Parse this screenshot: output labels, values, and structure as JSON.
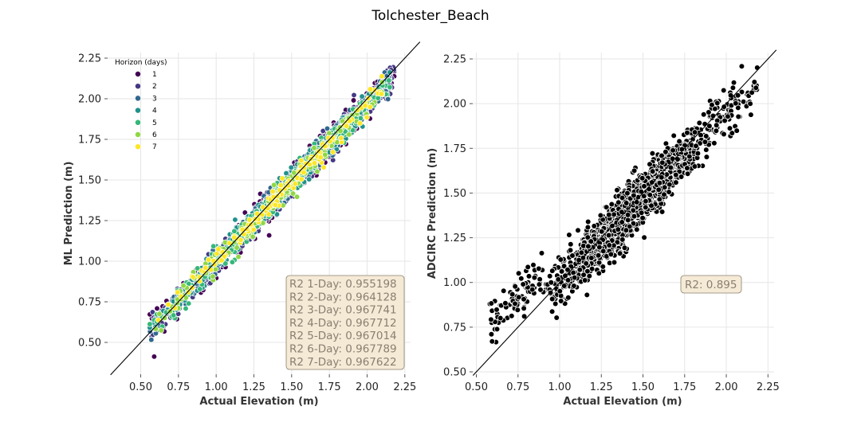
{
  "title": "Tolchester_Beach",
  "colors": {
    "grid": "#e6e6e6",
    "box_fill": "#f5ead6",
    "box_edge": "#8a8070",
    "box_text": "#8a7f70",
    "viridis": [
      "#440154",
      "#443983",
      "#31688e",
      "#21918c",
      "#35b779",
      "#8fd744",
      "#fde725"
    ]
  },
  "left_panel": {
    "xlabel": "Actual Elevation (m)",
    "ylabel": "ML Prediction (m)",
    "legend_title": "Horizon (days)",
    "legend_items": [
      "1",
      "2",
      "3",
      "4",
      "5",
      "6",
      "7"
    ],
    "r2_lines": [
      "R2 1-Day: 0.955198",
      "R2 2-Day: 0.964128",
      "R2 3-Day: 0.967741",
      "R2 4-Day: 0.967712",
      "R2 5-Day: 0.967014",
      "R2 6-Day: 0.967789",
      "R2 7-Day: 0.967622"
    ]
  },
  "right_panel": {
    "xlabel": "Actual Elevation (m)",
    "ylabel": "ADCIRC Prediction (m)",
    "r2_text": "R2: 0.895"
  },
  "chart_data": [
    {
      "type": "scatter",
      "title": "",
      "xlabel": "Actual Elevation (m)",
      "ylabel": "ML Prediction (m)",
      "xlim": [
        0.3,
        2.3
      ],
      "ylim": [
        0.3,
        2.3
      ],
      "xticks": [
        "0.50",
        "0.75",
        "1.00",
        "1.25",
        "1.50",
        "1.75",
        "2.00",
        "2.25"
      ],
      "yticks": [
        "0.50",
        "0.75",
        "1.00",
        "1.25",
        "1.50",
        "1.75",
        "2.00",
        "2.25"
      ],
      "grid": true,
      "legend": "top-left",
      "identity_line": true,
      "hue": "Horizon (days)",
      "series": [
        {
          "name": "1",
          "points_approx": 700,
          "x_range": [
            0.56,
            2.18
          ],
          "noise_sd": 0.045
        },
        {
          "name": "2",
          "points_approx": 600,
          "x_range": [
            0.56,
            2.18
          ],
          "noise_sd": 0.04
        },
        {
          "name": "3",
          "points_approx": 500,
          "x_range": [
            0.56,
            2.15
          ],
          "noise_sd": 0.037
        },
        {
          "name": "4",
          "points_approx": 400,
          "x_range": [
            0.56,
            2.15
          ],
          "noise_sd": 0.037
        },
        {
          "name": "5",
          "points_approx": 300,
          "x_range": [
            0.56,
            2.15
          ],
          "noise_sd": 0.037
        },
        {
          "name": "6",
          "points_approx": 180,
          "x_range": [
            0.6,
            2.1
          ],
          "noise_sd": 0.035
        },
        {
          "name": "7",
          "points_approx": 140,
          "x_range": [
            0.6,
            2.1
          ],
          "noise_sd": 0.035
        }
      ],
      "r2": {
        "1": 0.955198,
        "2": 0.964128,
        "3": 0.967741,
        "4": 0.967712,
        "5": 0.967014,
        "6": 0.967789,
        "7": 0.967622
      }
    },
    {
      "type": "scatter",
      "title": "",
      "xlabel": "Actual Elevation (m)",
      "ylabel": "ADCIRC Prediction (m)",
      "xlim": [
        0.5,
        2.3
      ],
      "ylim": [
        0.5,
        2.3
      ],
      "xticks": [
        "0.50",
        "0.75",
        "1.00",
        "1.25",
        "1.50",
        "1.75",
        "2.00",
        "2.25"
      ],
      "yticks": [
        "0.50",
        "0.75",
        "1.00",
        "1.25",
        "1.50",
        "1.75",
        "2.00",
        "2.25"
      ],
      "grid": true,
      "identity_line": true,
      "series": [
        {
          "name": "",
          "color": "#000000",
          "points_approx": 1500,
          "x_range": [
            0.57,
            2.19
          ],
          "noise_sd": 0.075
        }
      ],
      "r2": 0.895
    }
  ]
}
